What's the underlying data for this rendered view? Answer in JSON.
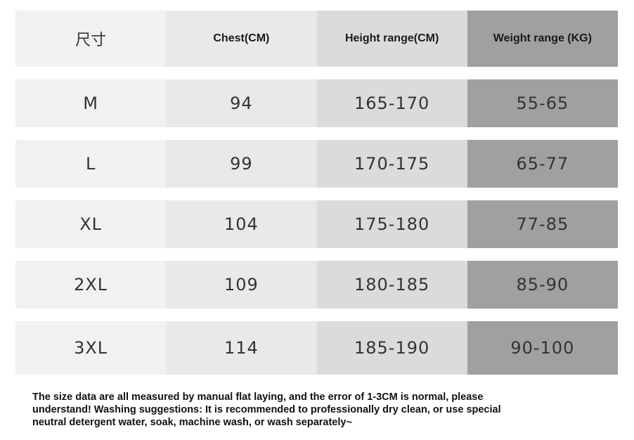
{
  "table": {
    "header": [
      "尺寸",
      "Chest(CM)",
      "Height range(CM)",
      "Weight range (KG)"
    ],
    "rows": [
      [
        "M",
        "94",
        "165-170",
        "55-65"
      ],
      [
        "L",
        "99",
        "170-175",
        "65-77"
      ],
      [
        "XL",
        "104",
        "175-180",
        "77-85"
      ],
      [
        "2XL",
        "109",
        "180-185",
        "85-90"
      ],
      [
        "3XL",
        "114",
        "185-190",
        "90-100"
      ]
    ]
  },
  "note": {
    "lines": [
      "The size data are all measured by manual flat laying, and the error of 1-3CM is normal, please",
      "understand! Washing suggestions: It is recommended to professionally dry clean, or use special",
      "neutral detergent water, soak, machine wash, or wash separately~"
    ]
  }
}
